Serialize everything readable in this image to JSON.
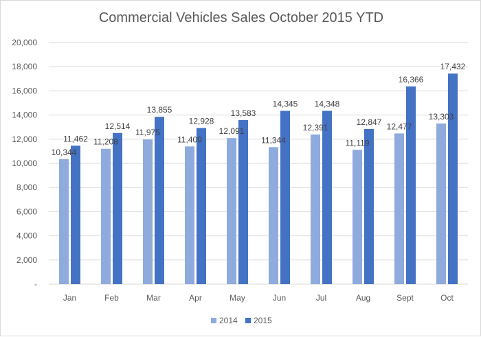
{
  "chart_data": {
    "type": "bar",
    "title": "Commercial Vehicles Sales October 2015 YTD",
    "xlabel": "",
    "ylabel": "",
    "categories": [
      "Jan",
      "Feb",
      "Mar",
      "Apr",
      "May",
      "Jun",
      "Jul",
      "Aug",
      "Sept",
      "Oct"
    ],
    "series": [
      {
        "name": "2014",
        "color": "#8faadc",
        "values": [
          10344,
          11208,
          11975,
          11400,
          12091,
          11344,
          12391,
          11119,
          12477,
          13303
        ],
        "labels": [
          "10,344",
          "11,208",
          "11,975",
          "11,400",
          "12,091",
          "11,344",
          "12,391",
          "11,119",
          "12,477",
          "13,303"
        ]
      },
      {
        "name": "2015",
        "color": "#4472c4",
        "values": [
          11462,
          12514,
          13855,
          12928,
          13583,
          14345,
          14348,
          12847,
          16366,
          17432
        ],
        "labels": [
          "11,462",
          "12,514",
          "13,855",
          "12,928",
          "13,583",
          "14,345",
          "14,348",
          "12,847",
          "16,366",
          "17,432"
        ]
      }
    ],
    "ylim": [
      0,
      20000
    ],
    "yticks": [
      0,
      2000,
      4000,
      6000,
      8000,
      10000,
      12000,
      14000,
      16000,
      18000,
      20000
    ],
    "ytick_labels": [
      "-",
      "2,000",
      "4,000",
      "6,000",
      "8,000",
      "10,000",
      "12,000",
      "14,000",
      "16,000",
      "18,000",
      "20,000"
    ],
    "grid": true,
    "gridline_color": "#d9d9d9",
    "legend_position": "bottom"
  }
}
